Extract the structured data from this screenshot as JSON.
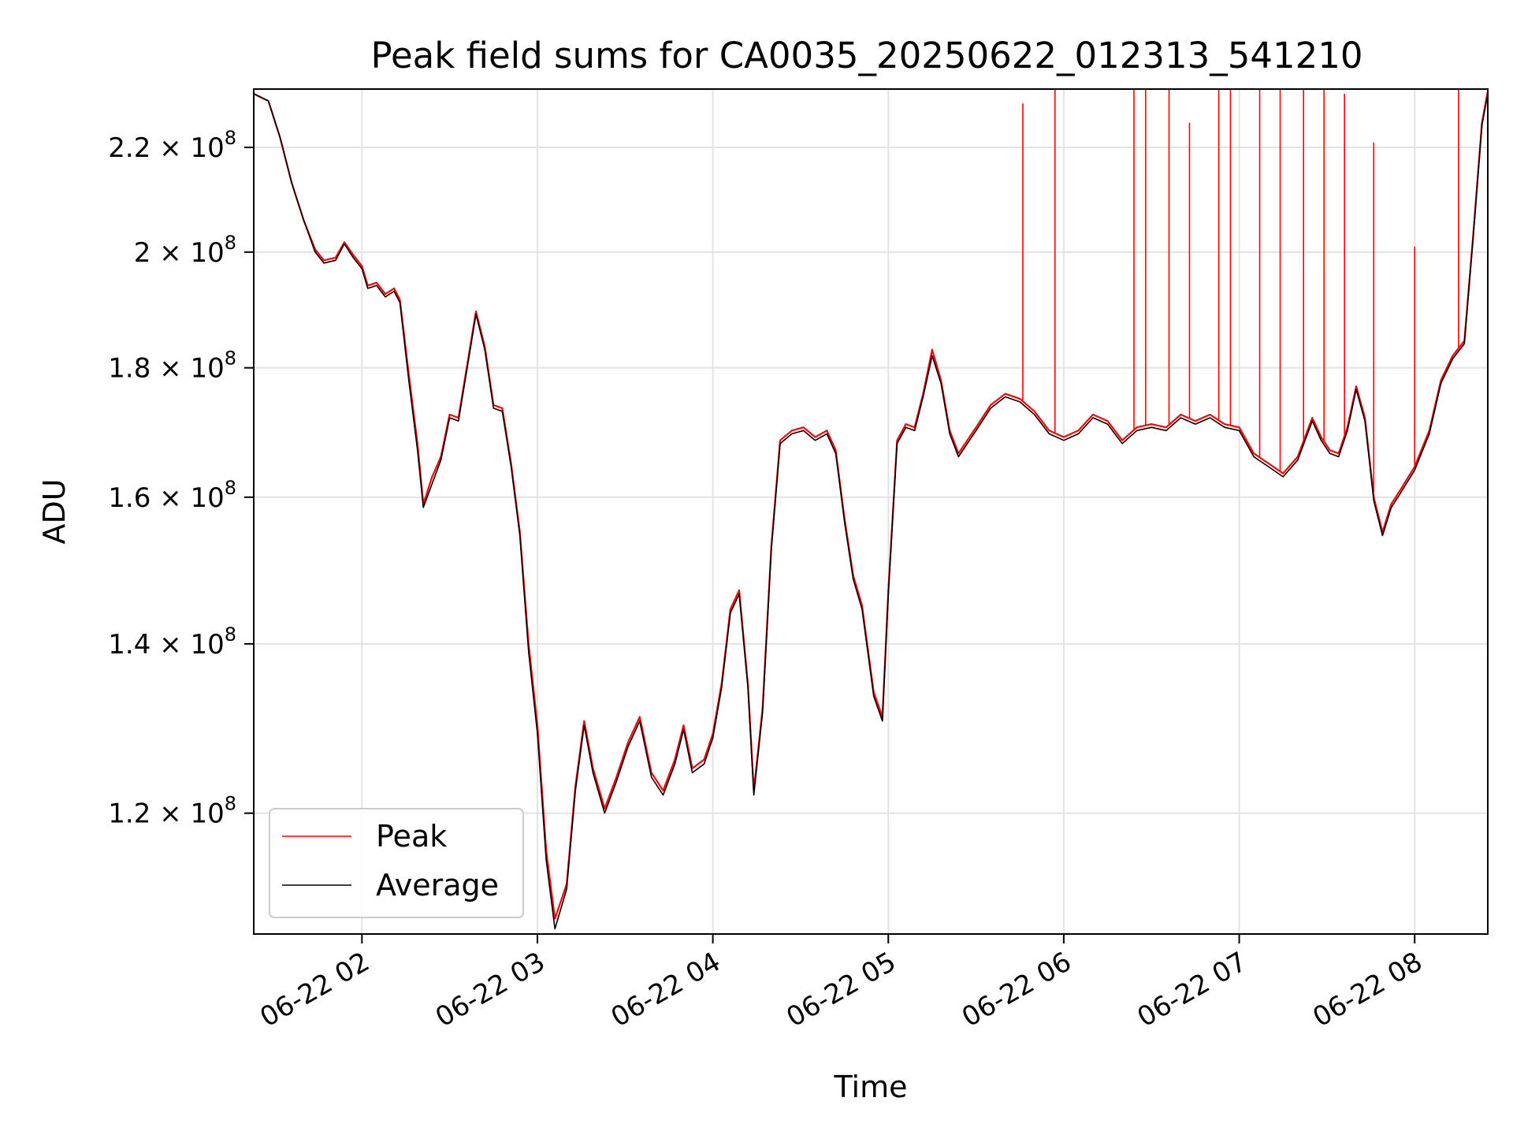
{
  "chart_data": {
    "type": "line",
    "title": "Peak field sums for CA0035_20250622_012313_541210",
    "xlabel": "Time",
    "ylabel": "ADU",
    "y_scale": "log",
    "grid": true,
    "legend_position": "lower-left",
    "x_range": [
      "2025-06-22 01:23",
      "2025-06-22 08:25"
    ],
    "y_range": [
      107500000,
      232000000
    ],
    "x_ticks": [
      {
        "t": "2025-06-22 02:00",
        "label": "06-22 02"
      },
      {
        "t": "2025-06-22 03:00",
        "label": "06-22 03"
      },
      {
        "t": "2025-06-22 04:00",
        "label": "06-22 04"
      },
      {
        "t": "2025-06-22 05:00",
        "label": "06-22 05"
      },
      {
        "t": "2025-06-22 06:00",
        "label": "06-22 06"
      },
      {
        "t": "2025-06-22 07:00",
        "label": "06-22 07"
      },
      {
        "t": "2025-06-22 08:00",
        "label": "06-22 08"
      }
    ],
    "y_ticks": [
      {
        "v": 120000000,
        "mantissa": "1.2",
        "exp": "8"
      },
      {
        "v": 140000000,
        "mantissa": "1.4",
        "exp": "8"
      },
      {
        "v": 160000000,
        "mantissa": "1.6",
        "exp": "8"
      },
      {
        "v": 180000000,
        "mantissa": "1.8",
        "exp": "8"
      },
      {
        "v": 200000000,
        "mantissa": "2",
        "exp": "8"
      },
      {
        "v": 220000000,
        "mantissa": "2.2",
        "exp": "8"
      }
    ],
    "series": [
      {
        "name": "Peak",
        "color": "#ff0000",
        "points": [
          [
            "01:23",
            231.0
          ],
          [
            "01:28",
            229.5
          ],
          [
            "01:32",
            222.0
          ],
          [
            "01:36",
            213.0
          ],
          [
            "01:40",
            206.0
          ],
          [
            "01:44",
            200.5
          ],
          [
            "01:47",
            198.5
          ],
          [
            "01:51",
            199.0
          ],
          [
            "01:54",
            201.8
          ],
          [
            "01:57",
            199.5
          ],
          [
            "02:00",
            197.5
          ],
          [
            "02:02",
            194.0
          ],
          [
            "02:05",
            194.5
          ],
          [
            "02:08",
            192.5
          ],
          [
            "02:11",
            193.5
          ],
          [
            "02:13",
            191.5
          ],
          [
            "02:16",
            179.0
          ],
          [
            "02:19",
            168.0
          ],
          [
            "02:21",
            159.0
          ],
          [
            "02:24",
            163.0
          ],
          [
            "02:27",
            166.0
          ],
          [
            "02:30",
            172.5
          ],
          [
            "02:33",
            172.0
          ],
          [
            "02:36",
            180.5
          ],
          [
            "02:39",
            189.5
          ],
          [
            "02:42",
            183.5
          ],
          [
            "02:45",
            174.0
          ],
          [
            "02:48",
            173.5
          ],
          [
            "02:51",
            165.0
          ],
          [
            "02:54",
            155.0
          ],
          [
            "02:57",
            140.0
          ],
          [
            "03:00",
            130.0
          ],
          [
            "03:03",
            116.0
          ],
          [
            "03:06",
            109.0
          ],
          [
            "03:10",
            112.5
          ],
          [
            "03:13",
            123.0
          ],
          [
            "03:16",
            130.5
          ],
          [
            "03:19",
            125.0
          ],
          [
            "03:23",
            120.5
          ],
          [
            "03:27",
            124.0
          ],
          [
            "03:31",
            128.0
          ],
          [
            "03:35",
            131.0
          ],
          [
            "03:39",
            124.5
          ],
          [
            "03:43",
            122.5
          ],
          [
            "03:47",
            126.0
          ],
          [
            "03:50",
            130.0
          ],
          [
            "03:53",
            125.0
          ],
          [
            "03:57",
            126.0
          ],
          [
            "04:00",
            129.0
          ],
          [
            "04:03",
            135.0
          ],
          [
            "04:06",
            144.5
          ],
          [
            "04:09",
            147.0
          ],
          [
            "04:12",
            135.0
          ],
          [
            "04:14",
            122.5
          ],
          [
            "04:17",
            132.0
          ],
          [
            "04:20",
            153.0
          ],
          [
            "04:23",
            168.5
          ],
          [
            "04:27",
            170.0
          ],
          [
            "04:31",
            170.5
          ],
          [
            "04:35",
            169.0
          ],
          [
            "04:39",
            170.0
          ],
          [
            "04:42",
            167.0
          ],
          [
            "04:45",
            157.0
          ],
          [
            "04:48",
            149.0
          ],
          [
            "04:51",
            145.0
          ],
          [
            "04:55",
            134.0
          ],
          [
            "04:58",
            131.0
          ],
          [
            "05:00",
            147.0
          ],
          [
            "05:03",
            168.5
          ],
          [
            "05:06",
            171.0
          ],
          [
            "05:09",
            170.5
          ],
          [
            "05:12",
            176.0
          ],
          [
            "05:15",
            183.0
          ],
          [
            "05:18",
            178.0
          ],
          [
            "05:21",
            170.0
          ],
          [
            "05:24",
            166.5
          ],
          [
            "05:30",
            170.5
          ],
          [
            "05:35",
            174.0
          ],
          [
            "05:40",
            175.8
          ],
          [
            "05:45",
            175.0
          ],
          [
            "05:50",
            173.0
          ],
          [
            "05:55",
            170.0
          ],
          [
            "06:00",
            169.0
          ],
          [
            "06:05",
            170.0
          ],
          [
            "06:10",
            172.5
          ],
          [
            "06:15",
            171.5
          ],
          [
            "06:20",
            168.5
          ],
          [
            "06:25",
            170.5
          ],
          [
            "06:30",
            171.0
          ],
          [
            "06:35",
            170.5
          ],
          [
            "06:40",
            172.5
          ],
          [
            "06:45",
            171.5
          ],
          [
            "06:50",
            172.5
          ],
          [
            "06:55",
            171.0
          ],
          [
            "07:00",
            170.5
          ],
          [
            "07:05",
            166.5
          ],
          [
            "07:10",
            165.0
          ],
          [
            "07:15",
            163.5
          ],
          [
            "07:20",
            166.0
          ],
          [
            "07:25",
            172.0
          ],
          [
            "07:28",
            169.0
          ],
          [
            "07:31",
            167.0
          ],
          [
            "07:34",
            166.5
          ],
          [
            "07:37",
            170.5
          ],
          [
            "07:40",
            177.0
          ],
          [
            "07:43",
            172.0
          ],
          [
            "07:46",
            160.0
          ],
          [
            "07:49",
            155.0
          ],
          [
            "07:52",
            159.0
          ],
          [
            "07:55",
            161.0
          ],
          [
            "08:00",
            164.5
          ],
          [
            "08:05",
            170.0
          ],
          [
            "08:09",
            178.0
          ],
          [
            "08:13",
            182.0
          ],
          [
            "08:17",
            184.5
          ],
          [
            "08:20",
            203.0
          ],
          [
            "08:23",
            225.0
          ],
          [
            "08:25",
            231.5
          ]
        ],
        "spikes": [
          [
            "05:46",
            229.0
          ],
          [
            "05:57",
            232.0
          ],
          [
            "06:24",
            232.0
          ],
          [
            "06:28",
            232.0
          ],
          [
            "06:36",
            232.0
          ],
          [
            "06:43",
            225.0
          ],
          [
            "06:53",
            232.0
          ],
          [
            "06:57",
            232.0
          ],
          [
            "07:07",
            232.0
          ],
          [
            "07:14",
            232.0
          ],
          [
            "07:22",
            232.0
          ],
          [
            "07:29",
            232.0
          ],
          [
            "07:36",
            231.0
          ],
          [
            "07:46",
            221.0
          ],
          [
            "08:00",
            201.0
          ],
          [
            "08:15",
            232.0
          ]
        ]
      },
      {
        "name": "Average",
        "color": "#000000",
        "points": [
          [
            "01:23",
            231.0
          ],
          [
            "01:28",
            229.5
          ],
          [
            "01:32",
            222.0
          ],
          [
            "01:36",
            213.0
          ],
          [
            "01:40",
            206.0
          ],
          [
            "01:44",
            200.0
          ],
          [
            "01:47",
            198.0
          ],
          [
            "01:51",
            198.5
          ],
          [
            "01:54",
            201.5
          ],
          [
            "01:57",
            199.0
          ],
          [
            "02:00",
            197.0
          ],
          [
            "02:02",
            193.5
          ],
          [
            "02:05",
            194.0
          ],
          [
            "02:08",
            192.0
          ],
          [
            "02:11",
            193.0
          ],
          [
            "02:13",
            191.0
          ],
          [
            "02:16",
            178.0
          ],
          [
            "02:19",
            167.0
          ],
          [
            "02:21",
            158.5
          ],
          [
            "02:24",
            162.0
          ],
          [
            "02:27",
            165.5
          ],
          [
            "02:30",
            172.0
          ],
          [
            "02:33",
            171.5
          ],
          [
            "02:36",
            180.0
          ],
          [
            "02:39",
            189.0
          ],
          [
            "02:42",
            183.0
          ],
          [
            "02:45",
            173.5
          ],
          [
            "02:48",
            173.0
          ],
          [
            "02:51",
            164.5
          ],
          [
            "02:54",
            154.5
          ],
          [
            "02:57",
            139.0
          ],
          [
            "03:00",
            129.0
          ],
          [
            "03:03",
            115.0
          ],
          [
            "03:06",
            108.0
          ],
          [
            "03:10",
            112.0
          ],
          [
            "03:13",
            122.5
          ],
          [
            "03:16",
            130.0
          ],
          [
            "03:19",
            124.5
          ],
          [
            "03:23",
            120.0
          ],
          [
            "03:27",
            123.5
          ],
          [
            "03:31",
            127.5
          ],
          [
            "03:35",
            130.5
          ],
          [
            "03:39",
            124.0
          ],
          [
            "03:43",
            122.0
          ],
          [
            "03:47",
            125.5
          ],
          [
            "03:50",
            129.5
          ],
          [
            "03:53",
            124.5
          ],
          [
            "03:57",
            125.5
          ],
          [
            "04:00",
            128.5
          ],
          [
            "04:03",
            134.5
          ],
          [
            "04:06",
            144.0
          ],
          [
            "04:09",
            146.5
          ],
          [
            "04:12",
            134.5
          ],
          [
            "04:14",
            122.0
          ],
          [
            "04:17",
            131.5
          ],
          [
            "04:20",
            152.5
          ],
          [
            "04:23",
            168.0
          ],
          [
            "04:27",
            169.5
          ],
          [
            "04:31",
            170.0
          ],
          [
            "04:35",
            168.5
          ],
          [
            "04:39",
            169.5
          ],
          [
            "04:42",
            166.5
          ],
          [
            "04:45",
            156.5
          ],
          [
            "04:48",
            148.5
          ],
          [
            "04:51",
            144.5
          ],
          [
            "04:55",
            133.5
          ],
          [
            "04:58",
            130.5
          ],
          [
            "05:00",
            146.5
          ],
          [
            "05:03",
            168.0
          ],
          [
            "05:06",
            170.5
          ],
          [
            "05:09",
            170.0
          ],
          [
            "05:12",
            175.5
          ],
          [
            "05:15",
            182.0
          ],
          [
            "05:18",
            177.5
          ],
          [
            "05:21",
            169.5
          ],
          [
            "05:24",
            166.0
          ],
          [
            "05:30",
            170.0
          ],
          [
            "05:35",
            173.5
          ],
          [
            "05:40",
            175.3
          ],
          [
            "05:45",
            174.5
          ],
          [
            "05:50",
            172.5
          ],
          [
            "05:55",
            169.5
          ],
          [
            "06:00",
            168.5
          ],
          [
            "06:05",
            169.5
          ],
          [
            "06:10",
            172.0
          ],
          [
            "06:15",
            171.0
          ],
          [
            "06:20",
            168.0
          ],
          [
            "06:25",
            170.0
          ],
          [
            "06:30",
            170.5
          ],
          [
            "06:35",
            170.0
          ],
          [
            "06:40",
            172.0
          ],
          [
            "06:45",
            171.0
          ],
          [
            "06:50",
            172.0
          ],
          [
            "06:55",
            170.5
          ],
          [
            "07:00",
            170.0
          ],
          [
            "07:05",
            166.0
          ],
          [
            "07:10",
            164.5
          ],
          [
            "07:15",
            163.0
          ],
          [
            "07:20",
            165.5
          ],
          [
            "07:25",
            171.5
          ],
          [
            "07:28",
            168.5
          ],
          [
            "07:31",
            166.5
          ],
          [
            "07:34",
            166.0
          ],
          [
            "07:37",
            170.0
          ],
          [
            "07:40",
            176.5
          ],
          [
            "07:43",
            171.5
          ],
          [
            "07:46",
            159.5
          ],
          [
            "07:49",
            154.5
          ],
          [
            "07:52",
            158.5
          ],
          [
            "07:55",
            160.5
          ],
          [
            "08:00",
            164.0
          ],
          [
            "08:05",
            169.5
          ],
          [
            "08:09",
            177.5
          ],
          [
            "08:13",
            181.5
          ],
          [
            "08:17",
            184.0
          ],
          [
            "08:20",
            202.5
          ],
          [
            "08:23",
            224.5
          ],
          [
            "08:25",
            231.0
          ]
        ]
      }
    ]
  }
}
